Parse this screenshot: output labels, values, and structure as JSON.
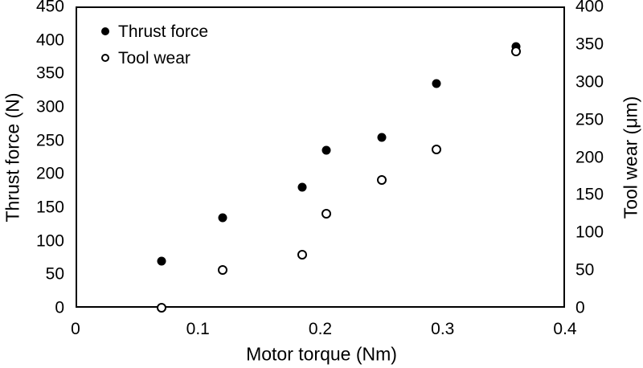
{
  "colors": {
    "background": "#ffffff",
    "marker": "#000000",
    "axis": "#000000",
    "text": "#000000"
  },
  "legend": {
    "items": [
      {
        "label": "Thrust force",
        "marker": "filled-circle"
      },
      {
        "label": "Tool wear",
        "marker": "open-circle"
      }
    ]
  },
  "chart_data": {
    "type": "scatter",
    "title": "",
    "xlabel": "Motor torque (Nm)",
    "ylabel_left": "Thrust force (N)",
    "ylabel_right": "Tool wear (μm)",
    "x_range": [
      0,
      0.4
    ],
    "y_left_range": [
      0,
      450
    ],
    "y_right_range": [
      0,
      400
    ],
    "x_ticks": [
      0,
      0.1,
      0.2,
      0.3,
      0.4
    ],
    "x_tick_labels": [
      "0",
      "0.1",
      "0.2",
      "0.3",
      "0.4"
    ],
    "y_left_ticks": [
      0,
      50,
      100,
      150,
      200,
      250,
      300,
      350,
      400,
      450
    ],
    "y_left_tick_labels": [
      "0",
      "50",
      "100",
      "150",
      "200",
      "250",
      "300",
      "350",
      "400",
      "450"
    ],
    "y_right_ticks": [
      0,
      50,
      100,
      150,
      200,
      250,
      300,
      350,
      400
    ],
    "y_right_tick_labels": [
      "0",
      "50",
      "100",
      "150",
      "200",
      "250",
      "300",
      "350",
      "400"
    ],
    "grid": false,
    "legend_position": "top-left-inside",
    "series": [
      {
        "name": "Thrust force",
        "axis": "left",
        "marker": "filled-circle",
        "points": [
          [
            0.07,
            70
          ],
          [
            0.12,
            135
          ],
          [
            0.185,
            180
          ],
          [
            0.205,
            235
          ],
          [
            0.25,
            255
          ],
          [
            0.295,
            335
          ],
          [
            0.36,
            390
          ]
        ]
      },
      {
        "name": "Tool wear",
        "axis": "right",
        "marker": "open-circle",
        "points": [
          [
            0.07,
            0
          ],
          [
            0.12,
            50
          ],
          [
            0.185,
            70
          ],
          [
            0.205,
            125
          ],
          [
            0.25,
            170
          ],
          [
            0.295,
            210
          ],
          [
            0.36,
            340
          ]
        ]
      }
    ]
  }
}
